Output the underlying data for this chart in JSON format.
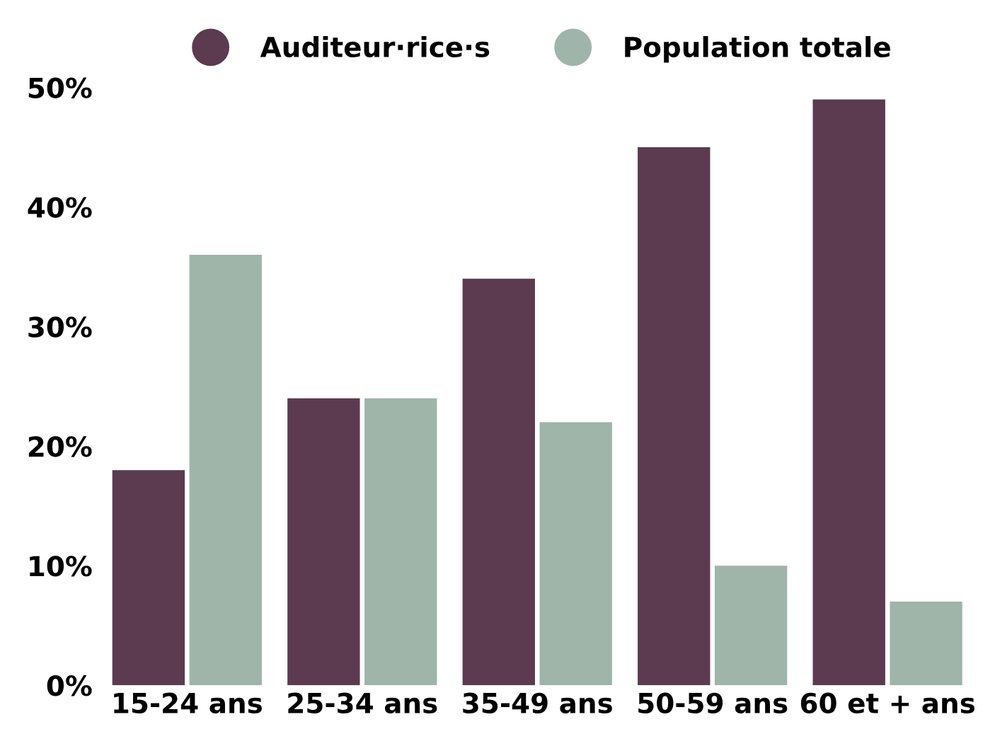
{
  "chart_data": {
    "type": "bar",
    "categories": [
      "15-24 ans",
      "25-34 ans",
      "35-49 ans",
      "50-59 ans",
      "60 et + ans"
    ],
    "series": [
      {
        "name": "Auditeur·rice·s",
        "color": "#5c3a50",
        "values": [
          18,
          24,
          34,
          45,
          49
        ]
      },
      {
        "name": "Population totale",
        "color": "#9fb5aa",
        "values": [
          36,
          24,
          22,
          10,
          7
        ]
      }
    ],
    "ylim": [
      0,
      50
    ],
    "yticks": [
      {
        "value": 0,
        "label": "0%"
      },
      {
        "value": 10,
        "label": "10%"
      },
      {
        "value": 20,
        "label": "20%"
      },
      {
        "value": 30,
        "label": "30%"
      },
      {
        "value": 40,
        "label": "40%"
      },
      {
        "value": 50,
        "label": "50%"
      }
    ],
    "grid": false,
    "legend": "top"
  }
}
